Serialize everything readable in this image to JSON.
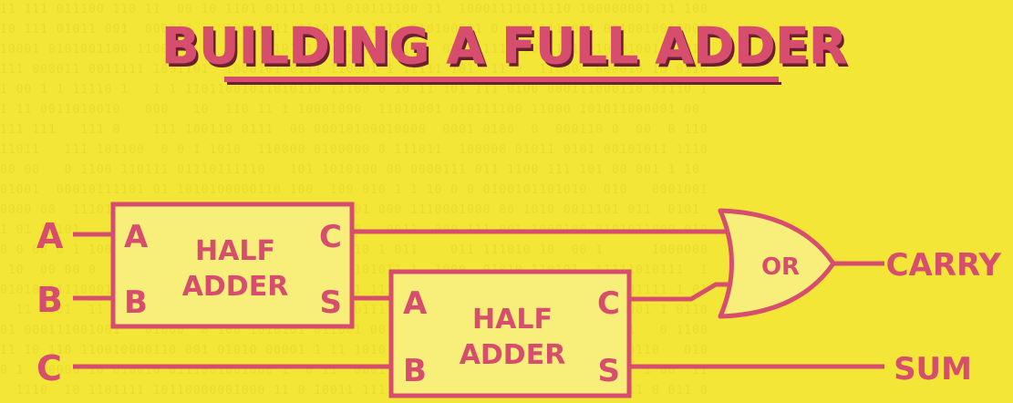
{
  "title": "BUILDING A FULL ADDER",
  "inputs": {
    "a": "A",
    "b": "B",
    "c": "C"
  },
  "half_adder_1": {
    "label_line1": "HALF",
    "label_line2": "ADDER",
    "in_a": "A",
    "in_b": "B",
    "out_c": "C",
    "out_s": "S"
  },
  "half_adder_2": {
    "label_line1": "HALF",
    "label_line2": "ADDER",
    "in_a": "A",
    "in_b": "B",
    "out_c": "C",
    "out_s": "S"
  },
  "or_gate": {
    "label": "OR"
  },
  "outputs": {
    "carry": "CARRY",
    "sum": "SUM"
  },
  "colors": {
    "background": "#f3e637",
    "ink": "#d64d6e",
    "box_fill": "#f7ef7a",
    "title_shadow": "#6b2030"
  }
}
